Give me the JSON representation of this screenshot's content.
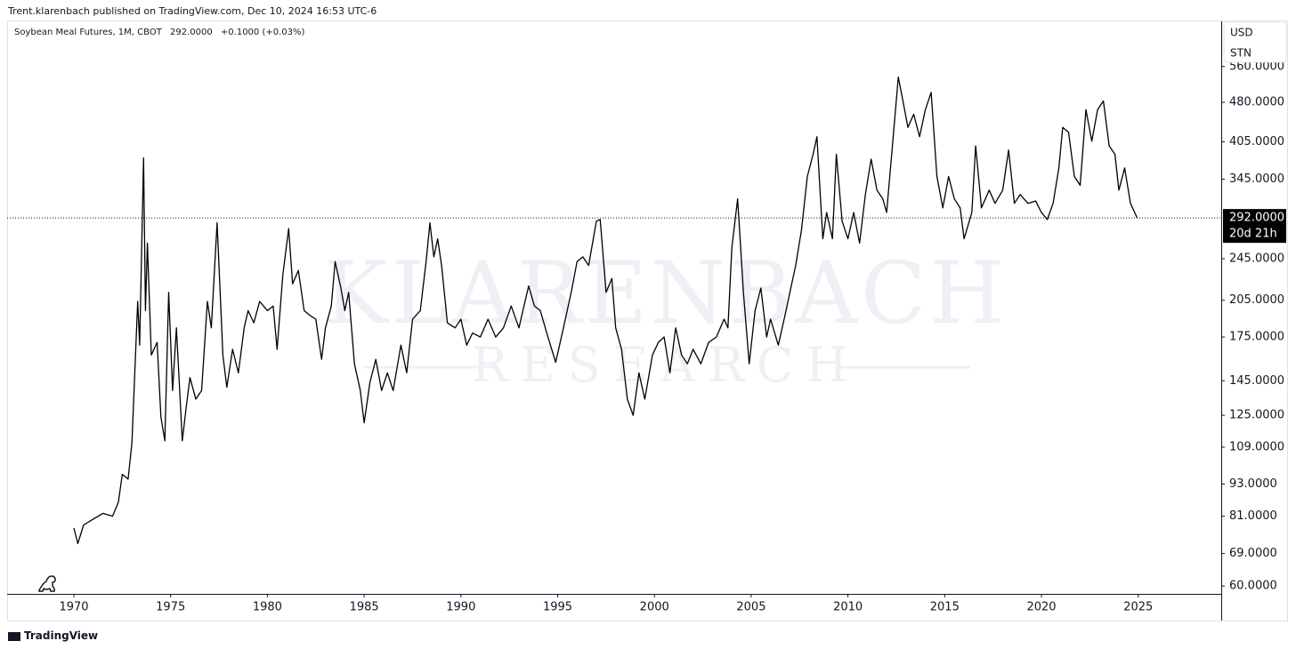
{
  "published": "Trent.klarenbach published on TradingView.com, Dec 10, 2024 16:53 UTC-6",
  "footer_brand": "TradingView",
  "currency": "USD",
  "unit": "STN",
  "watermark": [
    "KLARENBACH",
    "RESEARCH"
  ],
  "chart_data": {
    "type": "line",
    "title": "Soybean Meal Futures, 1M, CBOT",
    "last_price": {
      "value": 292,
      "label": "292.0000"
    },
    "change": "+0.1000 (+0.03%)",
    "countdown": "20d 21h",
    "log_scale": true,
    "xlim": [
      1966.55,
      2029.29
    ],
    "xticks": [
      1970,
      1975,
      1980,
      1985,
      1990,
      1995,
      2000,
      2005,
      2010,
      2015,
      2020,
      2025
    ],
    "ylim": [
      58,
      680
    ],
    "yticks": [
      {
        "value": 60,
        "label": "60.0000"
      },
      {
        "value": 69,
        "label": "69.0000"
      },
      {
        "value": 81,
        "label": "81.0000"
      },
      {
        "value": 93,
        "label": "93.0000"
      },
      {
        "value": 109,
        "label": "109.0000"
      },
      {
        "value": 125,
        "label": "125.0000"
      },
      {
        "value": 145,
        "label": "145.0000"
      },
      {
        "value": 175,
        "label": "175.0000"
      },
      {
        "value": 205,
        "label": "205.0000"
      },
      {
        "value": 245,
        "label": "245.0000"
      },
      {
        "value": 345,
        "label": "345.0000"
      },
      {
        "value": 405,
        "label": "405.0000"
      },
      {
        "value": 480,
        "label": "480.0000"
      },
      {
        "value": 560,
        "label": "560.0000"
      }
    ],
    "series": [
      {
        "name": "Soybean Meal Futures",
        "color": "#000000",
        "x": [
          1970,
          1970.2,
          1970.5,
          1971,
          1971.5,
          1972,
          1972.3,
          1972.5,
          1972.8,
          1973,
          1973.3,
          1973.4,
          1973.6,
          1973.7,
          1973.8,
          1974,
          1974.3,
          1974.5,
          1974.7,
          1974.9,
          1975.1,
          1975.3,
          1975.6,
          1975.8,
          1976,
          1976.3,
          1976.6,
          1976.9,
          1977.1,
          1977.4,
          1977.7,
          1977.9,
          1978.2,
          1978.5,
          1978.8,
          1979,
          1979.3,
          1979.6,
          1980,
          1980.3,
          1980.5,
          1980.8,
          1981.1,
          1981.3,
          1981.6,
          1981.9,
          1982.2,
          1982.5,
          1982.8,
          1983,
          1983.3,
          1983.5,
          1983.8,
          1984,
          1984.2,
          1984.5,
          1984.8,
          1985,
          1985.3,
          1985.6,
          1985.9,
          1986.2,
          1986.5,
          1986.9,
          1987.2,
          1987.5,
          1987.9,
          1988.2,
          1988.4,
          1988.6,
          1988.8,
          1989,
          1989.3,
          1989.7,
          1990,
          1990.3,
          1990.6,
          1991,
          1991.4,
          1991.8,
          1992.2,
          1992.6,
          1993,
          1993.5,
          1993.8,
          1994.1,
          1994.5,
          1994.9,
          1995.3,
          1995.7,
          1996,
          1996.3,
          1996.6,
          1997,
          1997.2,
          1997.5,
          1997.8,
          1998,
          1998.3,
          1998.6,
          1998.9,
          1999.2,
          1999.5,
          1999.9,
          2000.2,
          2000.5,
          2000.8,
          2001.1,
          2001.4,
          2001.7,
          2002,
          2002.4,
          2002.8,
          2003.2,
          2003.6,
          2003.8,
          2004,
          2004.3,
          2004.6,
          2004.9,
          2005.2,
          2005.5,
          2005.8,
          2006,
          2006.4,
          2006.8,
          2007,
          2007.3,
          2007.6,
          2007.9,
          2008.2,
          2008.4,
          2008.7,
          2008.9,
          2009.2,
          2009.4,
          2009.7,
          2010,
          2010.3,
          2010.6,
          2010.9,
          2011.2,
          2011.5,
          2011.8,
          2012,
          2012.3,
          2012.6,
          2012.8,
          2013.1,
          2013.4,
          2013.7,
          2014,
          2014.3,
          2014.6,
          2014.9,
          2015.2,
          2015.5,
          2015.8,
          2016,
          2016.4,
          2016.6,
          2016.9,
          2017.3,
          2017.6,
          2018,
          2018.3,
          2018.6,
          2018.9,
          2019.3,
          2019.7,
          2020,
          2020.3,
          2020.6,
          2020.9,
          2021.1,
          2021.4,
          2021.7,
          2022,
          2022.3,
          2022.6,
          2022.9,
          2023.2,
          2023.5,
          2023.8,
          2024,
          2024.3,
          2024.6,
          2024.95
        ],
        "values": [
          77,
          72,
          78,
          80,
          82,
          81,
          86,
          97,
          95,
          111,
          204,
          169,
          378,
          196,
          262,
          162,
          171,
          124,
          112,
          212,
          139,
          182,
          112,
          129,
          147,
          134,
          139,
          204,
          182,
          286,
          162,
          141,
          166,
          150,
          182,
          196,
          186,
          204,
          196,
          200,
          166,
          229,
          279,
          220,
          233,
          196,
          192,
          189,
          159,
          182,
          200,
          242,
          216,
          196,
          212,
          156,
          139,
          121,
          144,
          159,
          139,
          150,
          139,
          169,
          150,
          189,
          196,
          242,
          286,
          247,
          267,
          238,
          186,
          182,
          189,
          169,
          178,
          175,
          189,
          175,
          182,
          200,
          182,
          218,
          200,
          196,
          175,
          157,
          182,
          212,
          242,
          247,
          238,
          288,
          290,
          212,
          225,
          182,
          166,
          134,
          125,
          150,
          134,
          162,
          171,
          175,
          150,
          182,
          162,
          156,
          166,
          156,
          171,
          175,
          189,
          182,
          257,
          317,
          212,
          156,
          196,
          216,
          175,
          189,
          169,
          196,
          212,
          238,
          277,
          349,
          384,
          414,
          267,
          299,
          267,
          384,
          288,
          267,
          299,
          262,
          323,
          376,
          329,
          317,
          299,
          398,
          535,
          492,
          431,
          456,
          414,
          465,
          501,
          349,
          305,
          349,
          317,
          305,
          267,
          299,
          398,
          305,
          329,
          311,
          329,
          391,
          311,
          323,
          311,
          314,
          299,
          290,
          311,
          362,
          431,
          422,
          349,
          336,
          465,
          406,
          465,
          483,
          398,
          384,
          329,
          362,
          311,
          292
        ]
      }
    ]
  }
}
